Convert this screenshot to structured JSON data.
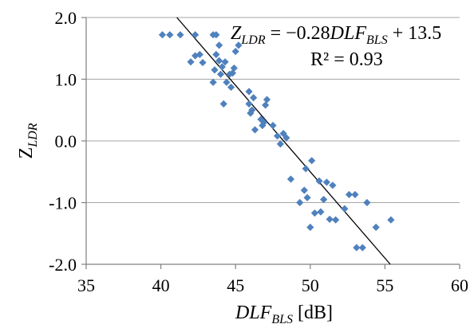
{
  "chart_data": {
    "type": "scatter",
    "title": "",
    "xlabel": {
      "main": "DLF",
      "sub": "BLS",
      "unit": " [dB]"
    },
    "ylabel": {
      "main": "Z",
      "sub": "LDR"
    },
    "xlim": [
      35,
      60
    ],
    "ylim": [
      -2.0,
      2.0
    ],
    "x_ticks": [
      35,
      40,
      45,
      50,
      55,
      60
    ],
    "x_tick_labels": [
      "35",
      "40",
      "45",
      "50",
      "55",
      "60"
    ],
    "y_ticks": [
      2.0,
      1.0,
      0.0,
      -1.0,
      -2.0
    ],
    "y_tick_labels": [
      "2.0",
      "1.0",
      "0.0",
      "-1.0",
      "-2.0"
    ],
    "grid": "horizontal",
    "marker_color": "#4f81bd",
    "series": [
      {
        "points": [
          [
            40.1,
            1.72
          ],
          [
            40.6,
            1.72
          ],
          [
            41.3,
            1.72
          ],
          [
            42.3,
            1.72
          ],
          [
            43.5,
            1.72
          ],
          [
            43.7,
            1.72
          ],
          [
            42.0,
            1.28
          ],
          [
            42.3,
            1.38
          ],
          [
            42.6,
            1.4
          ],
          [
            42.8,
            1.27
          ],
          [
            43.5,
            0.95
          ],
          [
            43.6,
            1.15
          ],
          [
            43.7,
            1.4
          ],
          [
            43.9,
            1.3
          ],
          [
            43.9,
            1.55
          ],
          [
            44.0,
            1.08
          ],
          [
            44.1,
            1.2
          ],
          [
            44.2,
            0.6
          ],
          [
            44.3,
            1.28
          ],
          [
            44.4,
            0.95
          ],
          [
            44.6,
            1.08
          ],
          [
            44.7,
            0.87
          ],
          [
            44.8,
            1.1
          ],
          [
            44.9,
            1.18
          ],
          [
            45.0,
            1.45
          ],
          [
            45.2,
            1.55
          ],
          [
            45.9,
            0.8
          ],
          [
            45.9,
            0.6
          ],
          [
            46.0,
            0.45
          ],
          [
            46.1,
            0.5
          ],
          [
            46.2,
            0.7
          ],
          [
            46.3,
            0.18
          ],
          [
            46.7,
            0.35
          ],
          [
            46.8,
            0.25
          ],
          [
            46.9,
            0.3
          ],
          [
            47.0,
            0.58
          ],
          [
            47.1,
            0.67
          ],
          [
            47.5,
            0.25
          ],
          [
            47.8,
            0.08
          ],
          [
            48.0,
            -0.05
          ],
          [
            48.2,
            0.12
          ],
          [
            48.4,
            0.05
          ],
          [
            48.7,
            -0.62
          ],
          [
            49.3,
            -1.0
          ],
          [
            49.6,
            -0.8
          ],
          [
            49.7,
            -0.45
          ],
          [
            49.8,
            -0.92
          ],
          [
            50.1,
            -0.32
          ],
          [
            50.0,
            -1.4
          ],
          [
            50.3,
            -1.17
          ],
          [
            50.6,
            -0.65
          ],
          [
            50.7,
            -1.15
          ],
          [
            50.9,
            -0.95
          ],
          [
            51.1,
            -0.67
          ],
          [
            51.3,
            -1.27
          ],
          [
            51.5,
            -0.72
          ],
          [
            51.7,
            -1.28
          ],
          [
            52.3,
            -1.1
          ],
          [
            52.6,
            -0.87
          ],
          [
            53.0,
            -0.87
          ],
          [
            53.1,
            -1.73
          ],
          [
            53.5,
            -1.73
          ],
          [
            53.8,
            -1.0
          ],
          [
            54.4,
            -1.4
          ],
          [
            55.4,
            -1.28
          ]
        ]
      }
    ],
    "trendline": {
      "slope": -0.28,
      "intercept": 13.5,
      "equation_parts": {
        "lhs_main": "Z",
        "lhs_sub": "LDR",
        "mid": " = −0.28",
        "var_main": "DLF",
        "var_sub": "BLS",
        "rhs": " + 13.5"
      },
      "r2_text": "R² = 0.93"
    }
  }
}
